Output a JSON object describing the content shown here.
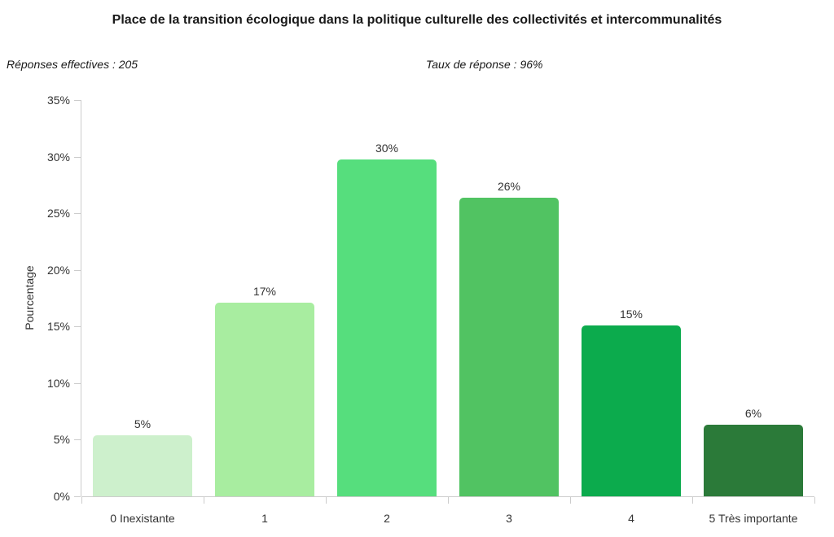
{
  "title": "Place de la transition écologique dans la politique culturelle des collectivités et intercommunalités",
  "meta": {
    "responses_label": "Réponses effectives : 205",
    "rate_label": "Taux de réponse : 96%"
  },
  "chart_data": {
    "type": "bar",
    "title": "Place de la transition écologique dans la politique culturelle des collectivités et intercommunalités",
    "subtitle_left": "Réponses effectives : 205",
    "subtitle_center": "Taux de réponse : 96%",
    "categories": [
      "0 Inexistante",
      "1",
      "2",
      "3",
      "4",
      "5 Très importante"
    ],
    "values": [
      5.37,
      17.07,
      29.76,
      26.34,
      15.12,
      6.34
    ],
    "value_labels": [
      "5%",
      "17%",
      "30%",
      "26%",
      "15%",
      "6%"
    ],
    "bar_colors": [
      "#cdf0cc",
      "#a8eda0",
      "#56de7d",
      "#51c362",
      "#0cab4d",
      "#2b7a39"
    ],
    "xlabel": "",
    "ylabel": "Pourcentage",
    "ylim": [
      0,
      35
    ],
    "ytick_step": 5,
    "ytick_labels": [
      "0%",
      "5%",
      "10%",
      "15%",
      "20%",
      "25%",
      "30%",
      "35%"
    ],
    "grid": false,
    "legend": "none",
    "axis_color": "#cccccc",
    "text_color": "#333333"
  }
}
